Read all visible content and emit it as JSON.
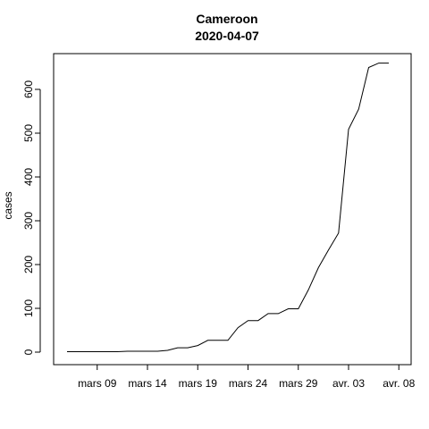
{
  "chart_data": {
    "type": "line",
    "title": "Cameroon",
    "subtitle": "2020-04-07",
    "xlabel": "",
    "ylabel": "cases",
    "ylim": [
      0,
      700
    ],
    "yticks": [
      0,
      100,
      200,
      300,
      400,
      500,
      600
    ],
    "xlim": [
      "2020-03-05",
      "2020-04-08"
    ],
    "xticks": [
      {
        "date": "2020-03-09",
        "label": "mars 09"
      },
      {
        "date": "2020-03-14",
        "label": "mars 14"
      },
      {
        "date": "2020-03-19",
        "label": "mars 19"
      },
      {
        "date": "2020-03-24",
        "label": "mars 24"
      },
      {
        "date": "2020-03-29",
        "label": "mars 29"
      },
      {
        "date": "2020-04-03",
        "label": "avr. 03"
      },
      {
        "date": "2020-04-08",
        "label": "avr. 08"
      }
    ],
    "grid": false,
    "series": [
      {
        "color": "#000000",
        "x": [
          "2020-03-06",
          "2020-03-07",
          "2020-03-08",
          "2020-03-09",
          "2020-03-10",
          "2020-03-11",
          "2020-03-12",
          "2020-03-13",
          "2020-03-14",
          "2020-03-15",
          "2020-03-16",
          "2020-03-17",
          "2020-03-18",
          "2020-03-19",
          "2020-03-20",
          "2020-03-21",
          "2020-03-22",
          "2020-03-23",
          "2020-03-24",
          "2020-03-25",
          "2020-03-26",
          "2020-03-27",
          "2020-03-28",
          "2020-03-29",
          "2020-03-30",
          "2020-03-31",
          "2020-04-01",
          "2020-04-02",
          "2020-04-03",
          "2020-04-04",
          "2020-04-05",
          "2020-04-06",
          "2020-04-07"
        ],
        "y": [
          1,
          1,
          1,
          1,
          1,
          1,
          2,
          2,
          2,
          2,
          4,
          10,
          10,
          15,
          27,
          27,
          27,
          56,
          72,
          72,
          88,
          88,
          99,
          99,
          142,
          193,
          233,
          272,
          509,
          555,
          650,
          660,
          660
        ]
      }
    ]
  }
}
